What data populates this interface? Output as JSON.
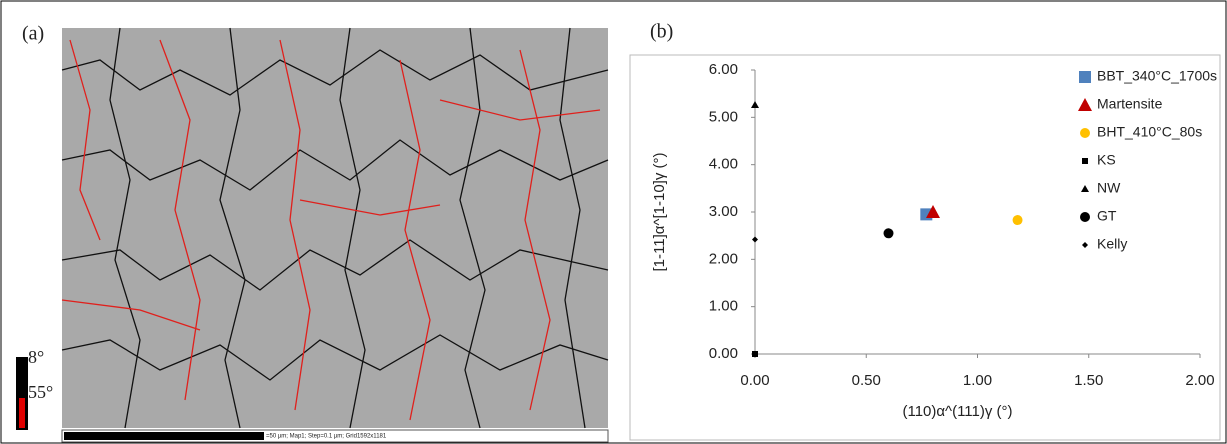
{
  "panels": {
    "a_label": "(a)",
    "b_label": "(b)",
    "colorbar_low": "8°",
    "colorbar_high": "55°",
    "scalebar_text": "=50 µm; Map1; Step=0.1 µm; Grid1592x1181"
  },
  "chart_data": {
    "type": "scatter",
    "xlabel": "(110)α^(111)γ (°)",
    "ylabel": "[1-11]α^[1-10]γ (°)",
    "xlim": [
      0,
      2
    ],
    "ylim": [
      0,
      6
    ],
    "xticks": [
      {
        "value": 0,
        "label": "0.00"
      },
      {
        "value": 0.5,
        "label": "0.50"
      },
      {
        "value": 1,
        "label": "1.00"
      },
      {
        "value": 1.5,
        "label": "1.50"
      },
      {
        "value": 2,
        "label": "2.00"
      }
    ],
    "yticks": [
      {
        "value": 0,
        "label": "0.00"
      },
      {
        "value": 1,
        "label": "1.00"
      },
      {
        "value": 2,
        "label": "2.00"
      },
      {
        "value": 3,
        "label": "3.00"
      },
      {
        "value": 4,
        "label": "4.00"
      },
      {
        "value": 5,
        "label": "5.00"
      },
      {
        "value": 6,
        "label": "6.00"
      }
    ],
    "legend": "right",
    "series": [
      {
        "name": "BBT_340°C_1700s",
        "color": "#4f81bd",
        "marker": "square",
        "x": [
          0.77
        ],
        "values": [
          2.95
        ]
      },
      {
        "name": "Martensite",
        "color": "#c00000",
        "marker": "triangle",
        "x": [
          0.8
        ],
        "values": [
          3.0
        ]
      },
      {
        "name": "BHT_410°C_80s",
        "color": "#ffc000",
        "marker": "circle",
        "x": [
          1.18
        ],
        "values": [
          2.83
        ]
      },
      {
        "name": "KS",
        "color": "#000000",
        "marker": "small-square",
        "x": [
          0
        ],
        "values": [
          0
        ]
      },
      {
        "name": "NW",
        "color": "#000000",
        "marker": "small-triangle",
        "x": [
          0
        ],
        "values": [
          5.26
        ]
      },
      {
        "name": "GT",
        "color": "#000000",
        "marker": "circle",
        "x": [
          0.6
        ],
        "values": [
          2.55
        ]
      },
      {
        "name": "Kelly",
        "color": "#000000",
        "marker": "diamond",
        "x": [
          0
        ],
        "values": [
          2.42
        ]
      }
    ]
  }
}
